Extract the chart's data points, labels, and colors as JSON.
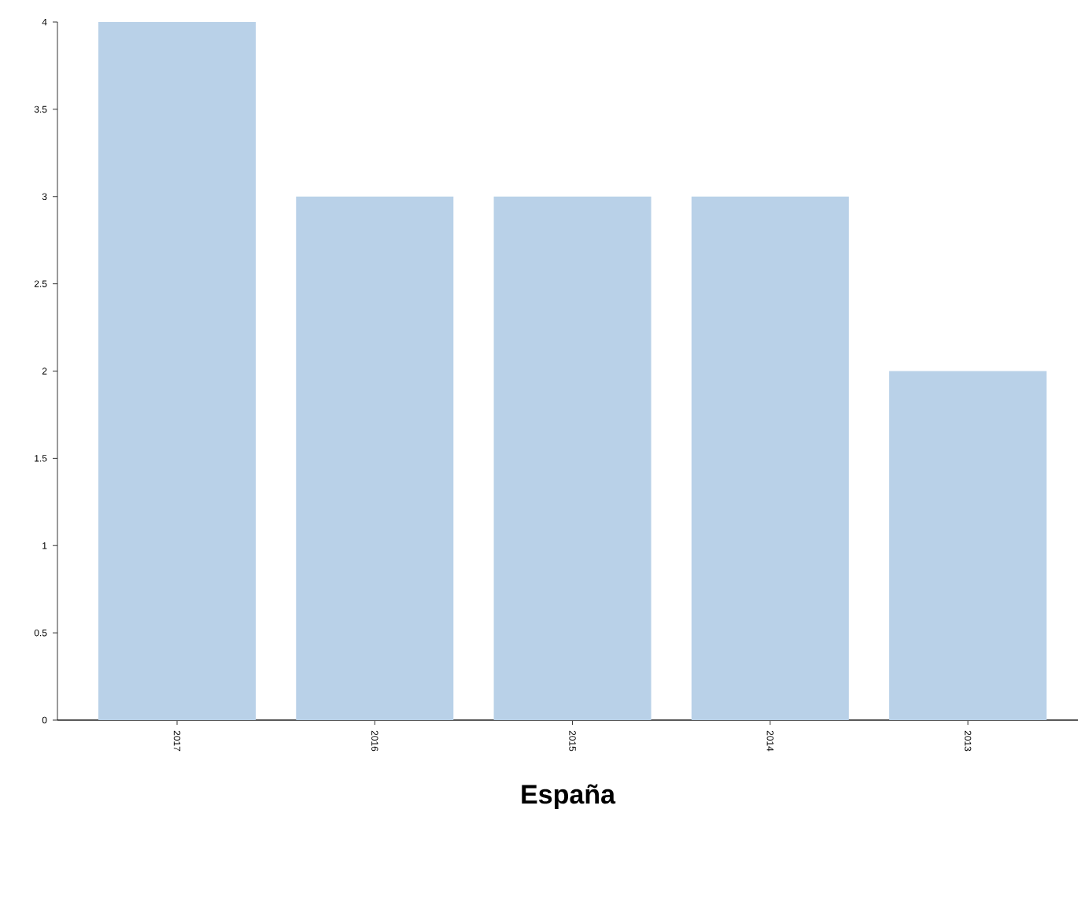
{
  "chart_data": {
    "type": "bar",
    "xlabel": "España",
    "categories": [
      "2017",
      "2016",
      "2015",
      "2014",
      "2013"
    ],
    "values": [
      4,
      3,
      3,
      3,
      2
    ],
    "color": "#b9d1e8",
    "ylim": [
      0,
      4
    ],
    "yticks": [
      0,
      0.5,
      1,
      1.5,
      2,
      2.5,
      3,
      3.5,
      4
    ]
  }
}
